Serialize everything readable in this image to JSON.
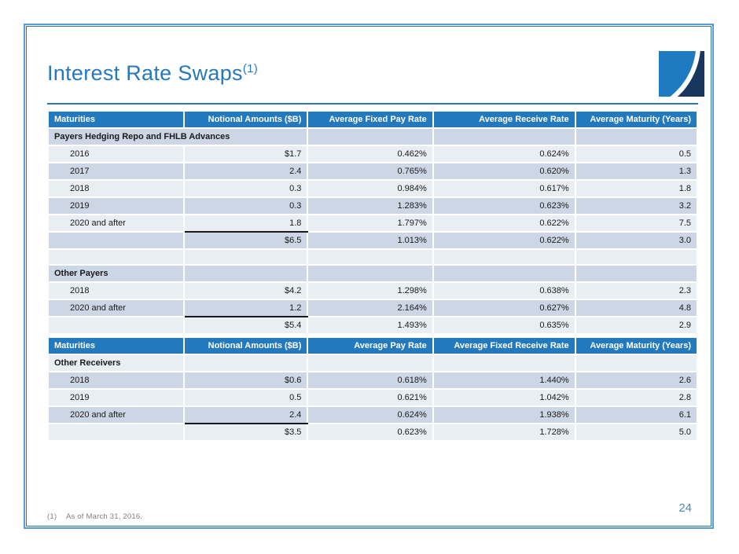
{
  "slide": {
    "title": "Interest Rate Swaps",
    "title_footnote_ref": "(1)",
    "page_number": "24",
    "footnote": {
      "marker": "(1)",
      "text": "As of March 31, 2016."
    }
  },
  "colors": {
    "header_blue": "#2379bd",
    "band_dark": "#cdd6e4",
    "band_light": "#e9edf4",
    "title_blue": "#2878bd",
    "border_inner": "#2e74b5",
    "border_outer": "#5b9bd5",
    "page_blue": "#4e87c5",
    "footnote_gray": "#7f7f7f",
    "logo_light": "#1e7ac1",
    "logo_navy": "#17375e",
    "underline_black": "#1a1a1a"
  },
  "tables": [
    {
      "headers": [
        "Maturities",
        "Notional Amounts ($B)",
        "Average Fixed Pay Rate",
        "Average Receive Rate",
        "Average Maturity (Years)"
      ],
      "rows": [
        {
          "type": "section",
          "band": "dark",
          "span2": true,
          "label": "Payers Hedging Repo and FHLB Advances",
          "cells": [
            "",
            "",
            ""
          ]
        },
        {
          "type": "data",
          "band": "light",
          "label": "2016",
          "cells": [
            "$1.7",
            "0.462%",
            "0.624%",
            "0.5"
          ]
        },
        {
          "type": "data",
          "band": "dark",
          "label": "2017",
          "cells": [
            "2.4",
            "0.765%",
            "0.620%",
            "1.3"
          ]
        },
        {
          "type": "data",
          "band": "light",
          "label": "2018",
          "cells": [
            "0.3",
            "0.984%",
            "0.617%",
            "1.8"
          ]
        },
        {
          "type": "data",
          "band": "dark",
          "label": "2019",
          "cells": [
            "0.3",
            "1.283%",
            "0.623%",
            "3.2"
          ]
        },
        {
          "type": "data",
          "band": "light",
          "label": "2020 and after",
          "underline": true,
          "cells": [
            "1.8",
            "1.797%",
            "0.622%",
            "7.5"
          ]
        },
        {
          "type": "total",
          "band": "dark",
          "label": "",
          "cells": [
            "$6.5",
            "1.013%",
            "0.622%",
            "3.0"
          ]
        },
        {
          "type": "empty",
          "band": "light",
          "label": "",
          "cells": [
            "",
            "",
            "",
            ""
          ]
        },
        {
          "type": "section",
          "band": "dark",
          "label": "Other Payers",
          "cells": [
            "",
            "",
            "",
            ""
          ]
        },
        {
          "type": "data",
          "band": "light",
          "label": "2018",
          "cells": [
            "$4.2",
            "1.298%",
            "0.638%",
            "2.3"
          ]
        },
        {
          "type": "data",
          "band": "dark",
          "label": "2020 and after",
          "underline": true,
          "cells": [
            "1.2",
            "2.164%",
            "0.627%",
            "4.8"
          ]
        },
        {
          "type": "total",
          "band": "light",
          "label": "",
          "cells": [
            "$5.4",
            "1.493%",
            "0.635%",
            "2.9"
          ]
        }
      ]
    },
    {
      "headers": [
        "Maturities",
        "Notional Amounts ($B)",
        "Average Pay Rate",
        "Average Fixed Receive Rate",
        "Average Maturity (Years)"
      ],
      "rows": [
        {
          "type": "section",
          "band": "light",
          "label": "Other Receivers",
          "cells": [
            "",
            "",
            "",
            ""
          ]
        },
        {
          "type": "data",
          "band": "dark",
          "label": "2018",
          "cells": [
            "$0.6",
            "0.618%",
            "1.440%",
            "2.6"
          ]
        },
        {
          "type": "data",
          "band": "light",
          "label": "2019",
          "cells": [
            "0.5",
            "0.621%",
            "1.042%",
            "2.8"
          ]
        },
        {
          "type": "data",
          "band": "dark",
          "label": "2020 and after",
          "underline": true,
          "cells": [
            "2.4",
            "0.624%",
            "1.938%",
            "6.1"
          ]
        },
        {
          "type": "total",
          "band": "light",
          "label": "",
          "cells": [
            "$3.5",
            "0.623%",
            "1.728%",
            "5.0"
          ]
        }
      ]
    }
  ]
}
